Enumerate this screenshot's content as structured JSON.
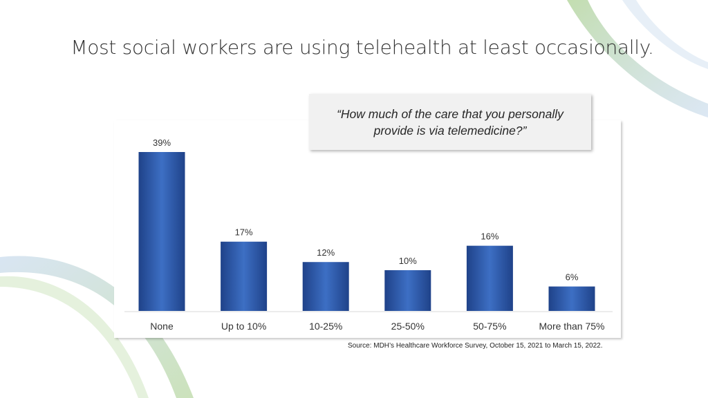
{
  "title": "Most social workers are using telehealth at least occasionally.",
  "question": "“How much of the care that you personally provide is via telemedicine?”",
  "source": "Source: MDH’s Healthcare Workforce Survey, October 15, 2021 to March 15, 2022.",
  "colors": {
    "bar": "#2f5aa8",
    "bar_dark": "#1f4289",
    "bar_light": "#3d6fc4",
    "accent_green": "#a9cf8e",
    "accent_blue": "#b9d0e8"
  },
  "chart_data": {
    "type": "bar",
    "title": "",
    "categories": [
      "None",
      "Up to 10%",
      "10-25%",
      "25-50%",
      "50-75%",
      "More than 75%"
    ],
    "values": [
      39,
      17,
      12,
      10,
      16,
      6
    ],
    "value_labels": [
      "39%",
      "17%",
      "12%",
      "10%",
      "16%",
      "6%"
    ],
    "unit": "%",
    "ylim": [
      0,
      40
    ],
    "xlabel": "",
    "ylabel": "",
    "grid": false,
    "legend": "none"
  }
}
